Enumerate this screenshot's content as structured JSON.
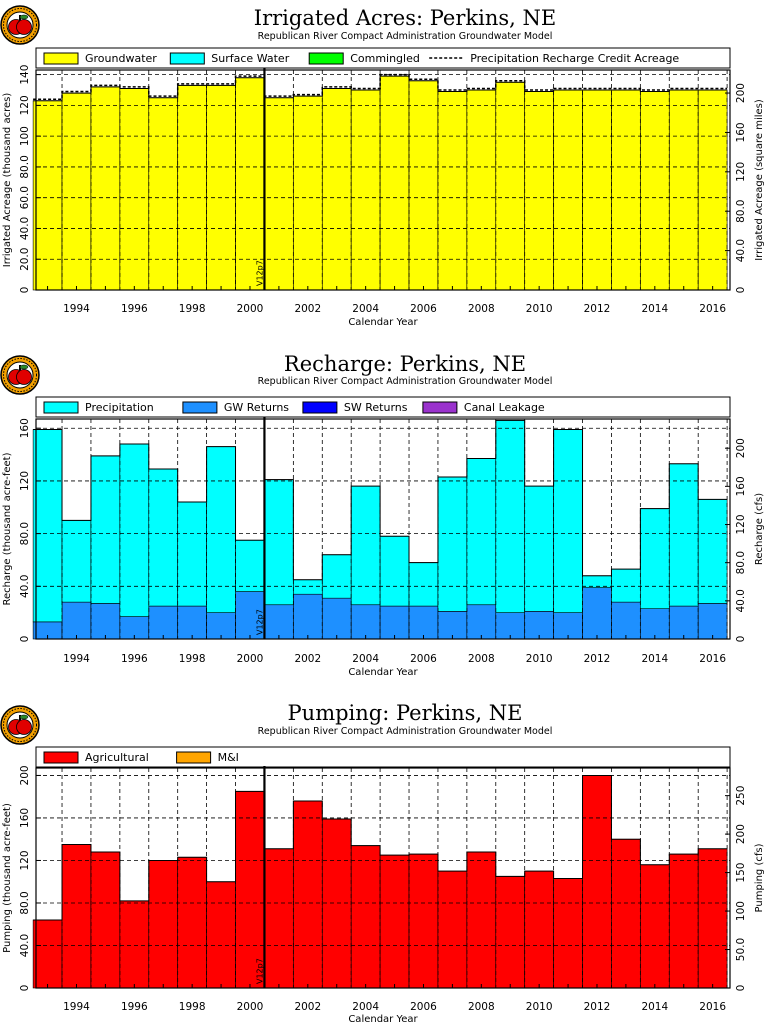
{
  "colors": {
    "groundwater": "#ffff00",
    "surface_water": "#00ffff",
    "commingled": "#00ff00",
    "precipitation": "#00ffff",
    "gw_returns": "#1e90ff",
    "sw_returns": "#0000ff",
    "canal_leakage": "#9a32cd",
    "agricultural": "#ff0000",
    "mi": "#ffa500",
    "logo_red": "#e00000",
    "logo_ring": "#f2a000"
  },
  "logo": {
    "icon": "apple-logo-icon"
  },
  "chart_data": [
    {
      "type": "area",
      "title": "Irrigated Acres: Perkins, NE",
      "subtitle": "Republican River Compact Administration Groundwater Model",
      "xlabel": "Calendar Year",
      "ylabel": "Irrigated Acreage (thousand acres)",
      "ylabel_right": "Irrigated Acreage (square miles)",
      "xlim": [
        1992.6,
        2016.6
      ],
      "ylim": [
        0,
        143
      ],
      "ylim_right": [
        0,
        223.4
      ],
      "x_ticks": [
        "1994",
        "1996",
        "1998",
        "2000",
        "2002",
        "2004",
        "2006",
        "2008",
        "2010",
        "2012",
        "2014",
        "2016"
      ],
      "y_ticks": [
        "0",
        "20.0",
        "40.0",
        "60.0",
        "80.0",
        "100",
        "120",
        "140"
      ],
      "y_ticks_right": [
        "0",
        "40.0",
        "80.0",
        "120",
        "160",
        "200"
      ],
      "legend": [
        {
          "name": "Groundwater",
          "color_key": "groundwater"
        },
        {
          "name": "Surface Water",
          "color_key": "surface_water"
        },
        {
          "name": "Commingled",
          "color_key": "commingled"
        },
        {
          "name": "Precipitation Recharge Credit Acreage",
          "style": "dashed"
        }
      ],
      "years": [
        1993,
        1994,
        1995,
        1996,
        1997,
        1998,
        1999,
        2000,
        2001,
        2002,
        2003,
        2004,
        2005,
        2006,
        2007,
        2008,
        2009,
        2010,
        2011,
        2012,
        2013,
        2014,
        2015,
        2016
      ],
      "series": [
        {
          "name": "Groundwater",
          "color_key": "groundwater",
          "values": [
            123,
            128,
            132,
            131,
            125,
            133,
            133,
            138,
            125,
            126,
            131,
            130,
            139,
            136,
            129,
            130,
            135,
            129,
            130,
            130,
            130,
            129,
            130,
            130
          ]
        }
      ],
      "dashed_line": {
        "name": "Precipitation Recharge Credit Acreage",
        "values": [
          124,
          129,
          133,
          132,
          126,
          134,
          134,
          139,
          126,
          127,
          132,
          131,
          140,
          137,
          130,
          131,
          136,
          130,
          131,
          131,
          131,
          130,
          131,
          131
        ]
      },
      "marker": {
        "x": 2000.5,
        "label": "V12p7"
      }
    },
    {
      "type": "area",
      "title": "Recharge: Perkins, NE",
      "subtitle": "Republican River Compact Administration Groundwater Model",
      "xlabel": "Calendar Year",
      "ylabel": "Recharge (thousand acre-feet)",
      "ylabel_right": "Recharge (cfs)",
      "xlim": [
        1992.6,
        2016.6
      ],
      "ylim": [
        0,
        167
      ],
      "ylim_right": [
        0,
        230.6
      ],
      "x_ticks": [
        "1994",
        "1996",
        "1998",
        "2000",
        "2002",
        "2004",
        "2006",
        "2008",
        "2010",
        "2012",
        "2014",
        "2016"
      ],
      "y_ticks": [
        "0",
        "40.0",
        "80.0",
        "120",
        "160"
      ],
      "y_ticks_right": [
        "0",
        "40.0",
        "80.0",
        "120",
        "160",
        "200"
      ],
      "legend": [
        {
          "name": "Precipitation",
          "color_key": "precipitation"
        },
        {
          "name": "GW Returns",
          "color_key": "gw_returns"
        },
        {
          "name": "SW Returns",
          "color_key": "sw_returns"
        },
        {
          "name": "Canal Leakage",
          "color_key": "canal_leakage"
        }
      ],
      "years": [
        1993,
        1994,
        1995,
        1996,
        1997,
        1998,
        1999,
        2000,
        2001,
        2002,
        2003,
        2004,
        2005,
        2006,
        2007,
        2008,
        2009,
        2010,
        2011,
        2012,
        2013,
        2014,
        2015,
        2016
      ],
      "series": [
        {
          "name": "GW Returns",
          "color_key": "gw_returns",
          "values": [
            13,
            28,
            27,
            17,
            25,
            25,
            20,
            36,
            26,
            34,
            31,
            26,
            25,
            25,
            21,
            26,
            20,
            21,
            20,
            39,
            28,
            23,
            25,
            27
          ]
        },
        {
          "name": "Precipitation",
          "color_key": "precipitation",
          "values": [
            146,
            62,
            112,
            131,
            104,
            79,
            126,
            39,
            95,
            11,
            33,
            90,
            53,
            33,
            102,
            111,
            146,
            95,
            139,
            9,
            25,
            76,
            108,
            79
          ]
        }
      ],
      "marker": {
        "x": 2000.5,
        "label": "V12p7"
      }
    },
    {
      "type": "area",
      "title": "Pumping: Perkins, NE",
      "subtitle": "Republican River Compact Administration Groundwater Model",
      "xlabel": "Calendar Year",
      "ylabel": "Pumping (thousand acre-feet)",
      "ylabel_right": "Pumping (cfs)",
      "xlim": [
        1992.6,
        2016.6
      ],
      "ylim": [
        0,
        207
      ],
      "ylim_right": [
        0,
        285.9
      ],
      "x_ticks": [
        "1994",
        "1996",
        "1998",
        "2000",
        "2002",
        "2004",
        "2006",
        "2008",
        "2010",
        "2012",
        "2014",
        "2016"
      ],
      "y_ticks": [
        "0",
        "40.0",
        "80.0",
        "120",
        "160",
        "200"
      ],
      "y_ticks_right": [
        "0",
        "50.0",
        "100",
        "150",
        "200",
        "250"
      ],
      "legend": [
        {
          "name": "Agricultural",
          "color_key": "agricultural"
        },
        {
          "name": "M&I",
          "color_key": "mi"
        }
      ],
      "years": [
        1993,
        1994,
        1995,
        1996,
        1997,
        1998,
        1999,
        2000,
        2001,
        2002,
        2003,
        2004,
        2005,
        2006,
        2007,
        2008,
        2009,
        2010,
        2011,
        2012,
        2013,
        2014,
        2015,
        2016
      ],
      "series": [
        {
          "name": "Agricultural",
          "color_key": "agricultural",
          "values": [
            64,
            135,
            128,
            82,
            120,
            123,
            100,
            185,
            131,
            176,
            159,
            134,
            125,
            126,
            110,
            128,
            105,
            110,
            103,
            200,
            140,
            116,
            126,
            131
          ]
        }
      ],
      "marker": {
        "x": 2000.5,
        "label": "V12p7"
      }
    }
  ]
}
